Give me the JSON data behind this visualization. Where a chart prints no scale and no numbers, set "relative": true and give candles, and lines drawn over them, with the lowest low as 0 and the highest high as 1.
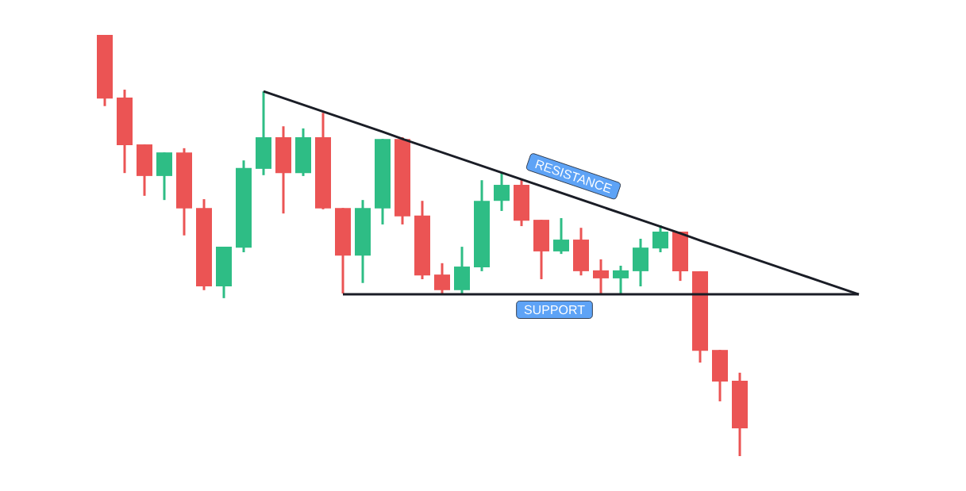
{
  "chart_data": {
    "type": "candlestick",
    "relative": true,
    "categories": [
      null,
      null,
      null,
      null,
      null,
      null,
      null,
      null,
      null,
      null,
      null,
      null,
      null,
      null,
      null,
      null,
      null,
      null,
      null,
      null,
      null,
      null,
      null,
      null,
      null,
      null,
      null,
      null,
      null,
      null,
      null,
      null,
      null,
      null,
      null,
      null,
      null,
      null,
      null
    ],
    "ohlc": [
      [
        1,
        1,
        0.831,
        0.849
      ],
      [
        0.851,
        0.87,
        0.672,
        0.738
      ],
      [
        0.74,
        0.74,
        0.618,
        0.665
      ],
      [
        0.665,
        0.721,
        0.608,
        0.721
      ],
      [
        0.721,
        0.731,
        0.524,
        0.588
      ],
      [
        0.589,
        0.61,
        0.394,
        0.403
      ],
      [
        0.403,
        0.497,
        0.375,
        0.497
      ],
      [
        0.495,
        0.702,
        0.484,
        0.684
      ],
      [
        0.682,
        0.866,
        0.667,
        0.757
      ],
      [
        0.757,
        0.783,
        0.576,
        0.672
      ],
      [
        0.672,
        0.778,
        0.665,
        0.757
      ],
      [
        0.757,
        0.815,
        0.586,
        0.588
      ],
      [
        0.589,
        0.589,
        0.386,
        0.476
      ],
      [
        0.476,
        0.608,
        0.411,
        0.589
      ],
      [
        0.588,
        0.753,
        0.55,
        0.753
      ],
      [
        0.753,
        0.757,
        0.55,
        0.569
      ],
      [
        0.571,
        0.606,
        0.42,
        0.429
      ],
      [
        0.431,
        0.458,
        0.386,
        0.394
      ],
      [
        0.394,
        0.497,
        0.384,
        0.45
      ],
      [
        0.448,
        0.655,
        0.439,
        0.606
      ],
      [
        0.606,
        0.674,
        0.582,
        0.644
      ],
      [
        0.644,
        0.657,
        0.546,
        0.559
      ],
      [
        0.561,
        0.561,
        0.42,
        0.486
      ],
      [
        0.486,
        0.565,
        0.48,
        0.514
      ],
      [
        0.514,
        0.542,
        0.429,
        0.439
      ],
      [
        0.441,
        0.467,
        0.386,
        0.422
      ],
      [
        0.422,
        0.452,
        0.384,
        0.441
      ],
      [
        0.439,
        0.516,
        0.403,
        0.495
      ],
      [
        0.493,
        0.548,
        0.484,
        0.533
      ],
      [
        0.533,
        0.533,
        0.416,
        0.439
      ],
      [
        0.439,
        0.439,
        0.222,
        0.25
      ],
      [
        0.252,
        0.252,
        0.13,
        0.177
      ],
      [
        0.179,
        0.198,
        0,
        0.066
      ],
      null,
      null,
      null,
      null,
      null,
      null
    ],
    "colors": [
      "#eb5454",
      "#eb5454",
      "#eb5454",
      "#2ebd85",
      "#eb5454",
      "#eb5454",
      "#2ebd85",
      "#2ebd85",
      "#2ebd85",
      "#eb5454",
      "#2ebd85",
      "#eb5454",
      "#eb5454",
      "#2ebd85",
      "#2ebd85",
      "#eb5454",
      "#eb5454",
      "#eb5454",
      "#2ebd85",
      "#2ebd85",
      "#2ebd85",
      "#eb5454",
      "#eb5454",
      "#2ebd85",
      "#eb5454",
      "#eb5454",
      "#2ebd85",
      "#2ebd85",
      "#2ebd85",
      "#eb5454",
      "#eb5454",
      "#eb5454",
      "#eb5454",
      null,
      null,
      null,
      null,
      null,
      null
    ],
    "series": [
      {
        "type": "line",
        "color": "#1a1d26",
        "values": [
          null,
          null,
          null,
          null,
          null,
          null,
          null,
          null,
          0.866,
          0.85,
          0.834,
          0.818,
          0.802,
          0.786,
          0.77,
          0.753,
          0.737,
          0.721,
          0.705,
          0.689,
          0.673,
          0.657,
          0.641,
          0.625,
          0.609,
          0.593,
          0.577,
          0.561,
          0.545,
          0.529,
          0.512,
          0.496,
          0.48,
          0.464,
          0.448,
          0.432,
          0.416,
          0.4,
          0.384
        ]
      },
      {
        "type": "line",
        "color": "#1a1d26",
        "values": [
          null,
          null,
          null,
          null,
          null,
          null,
          null,
          null,
          null,
          null,
          null,
          null,
          0.384,
          0.384,
          0.384,
          0.384,
          0.384,
          0.384,
          0.384,
          0.384,
          0.384,
          0.384,
          0.384,
          0.384,
          0.384,
          0.384,
          0.384,
          0.384,
          0.384,
          0.384,
          0.384,
          0.384,
          0.384,
          0.384,
          0.384,
          0.384,
          0.384,
          0.384,
          0.384
        ]
      }
    ],
    "annotations": [
      "RESISTANCE",
      "SUPPORT"
    ]
  }
}
